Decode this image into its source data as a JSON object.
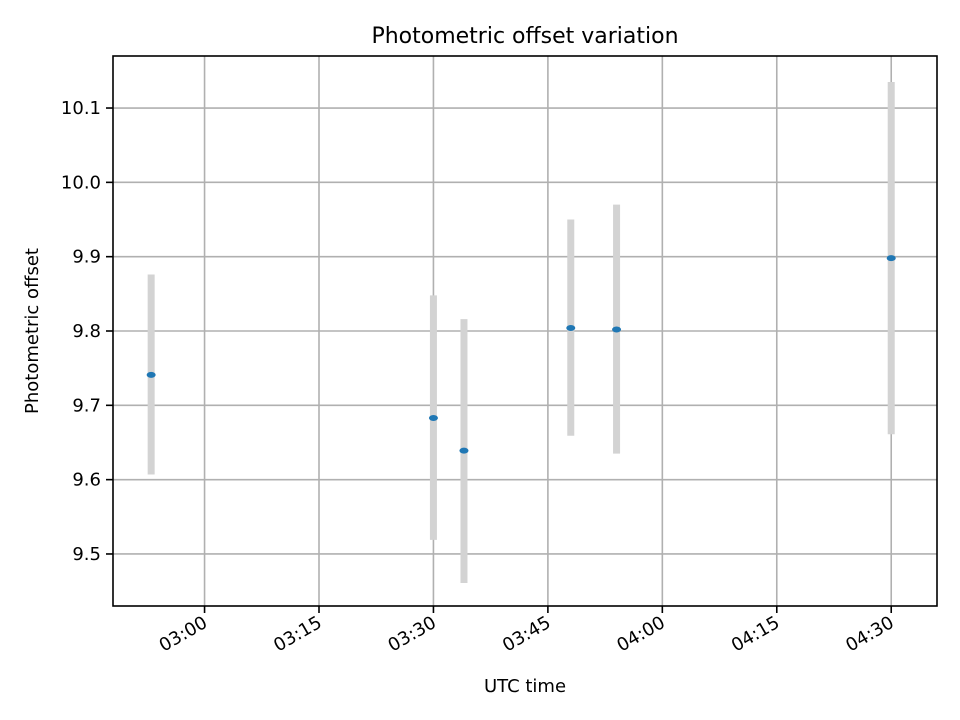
{
  "chart_data": {
    "type": "scatter",
    "title": "Photometric offset variation",
    "xlabel": "UTC time",
    "ylabel": "Photometric offset",
    "x_ticks": [
      "03:00",
      "03:15",
      "03:30",
      "03:45",
      "04:00",
      "04:15",
      "04:30"
    ],
    "y_ticks": [
      9.5,
      9.6,
      9.7,
      9.8,
      9.9,
      10.0,
      10.1
    ],
    "y_tick_labels": [
      "9.5",
      "9.6",
      "9.7",
      "9.8",
      "9.9",
      "10.0",
      "10.1"
    ],
    "xlim": [
      "02:48",
      "04:36"
    ],
    "ylim": [
      9.43,
      10.17
    ],
    "grid": true,
    "points": [
      {
        "x": "02:53",
        "y": 9.741,
        "y_low": 9.607,
        "y_high": 9.876
      },
      {
        "x": "03:30",
        "y": 9.683,
        "y_low": 9.519,
        "y_high": 9.848
      },
      {
        "x": "03:34",
        "y": 9.639,
        "y_low": 9.461,
        "y_high": 9.816
      },
      {
        "x": "03:48",
        "y": 9.804,
        "y_low": 9.659,
        "y_high": 9.95
      },
      {
        "x": "03:54",
        "y": 9.802,
        "y_low": 9.635,
        "y_high": 9.97
      },
      {
        "x": "04:30",
        "y": 9.898,
        "y_low": 9.661,
        "y_high": 10.135
      }
    ],
    "colors": {
      "marker": "#1f77b4",
      "errorbar": "#d3d3d3"
    }
  }
}
